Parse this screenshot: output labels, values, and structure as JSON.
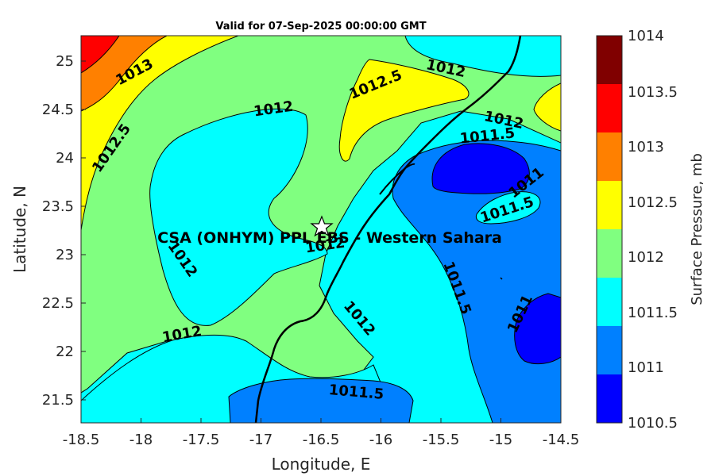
{
  "title": "Valid for 07-Sep-2025 00:00:00 GMT",
  "xlabel": "Longitude, E",
  "ylabel": "Latitude, N",
  "colorbar_label": "Surface Pressure, mb",
  "x_ticks": [
    "-18.5",
    "-18",
    "-17.5",
    "-17",
    "-16.5",
    "-16",
    "-15.5",
    "-15",
    "-14.5"
  ],
  "y_ticks": [
    "25",
    "24.5",
    "24",
    "23.5",
    "23",
    "22.5",
    "22",
    "21.5"
  ],
  "colorbar_ticks": [
    "1014",
    "1013.5",
    "1013",
    "1012.5",
    "1012",
    "1011.5",
    "1011",
    "1010.5"
  ],
  "colors": {
    "1010.5-1011": "#0000ff",
    "1011-1011.5": "#0080ff",
    "1011.5-1012": "#00ffff",
    "1012-1012.5": "#80ff80",
    "1012.5-1013": "#ffff00",
    "1013-1013.5": "#ff8000",
    "1013.5-1014": "#ff0000",
    "1014+": "#800000"
  },
  "contour_labels": [
    "1013",
    "1012.5",
    "1012",
    "1012",
    "1012.5",
    "1012",
    "1012",
    "1011.5",
    "1011",
    "1011.5",
    "1012",
    "1012",
    "1011.5",
    "1011",
    "1012",
    "1011.5"
  ],
  "site": {
    "label": "CSA (ONHYM) PPL EBS - Western Sahara",
    "longitude": -16.5,
    "latitude": 23.3,
    "marker": "star-icon"
  }
}
